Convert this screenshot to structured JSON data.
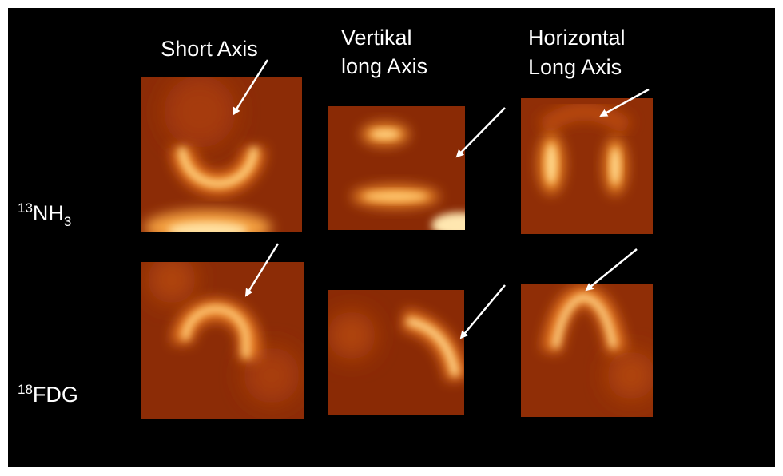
{
  "headers": {
    "short_axis": "Short Axis",
    "vertical": [
      "Vertikal",
      "long Axis"
    ],
    "horizontal": [
      "Horizontal",
      "Long Axis"
    ]
  },
  "rows": [
    {
      "sup": "13",
      "main": "NH",
      "sub": "3"
    },
    {
      "sup": "18",
      "main": "FDG"
    }
  ]
}
